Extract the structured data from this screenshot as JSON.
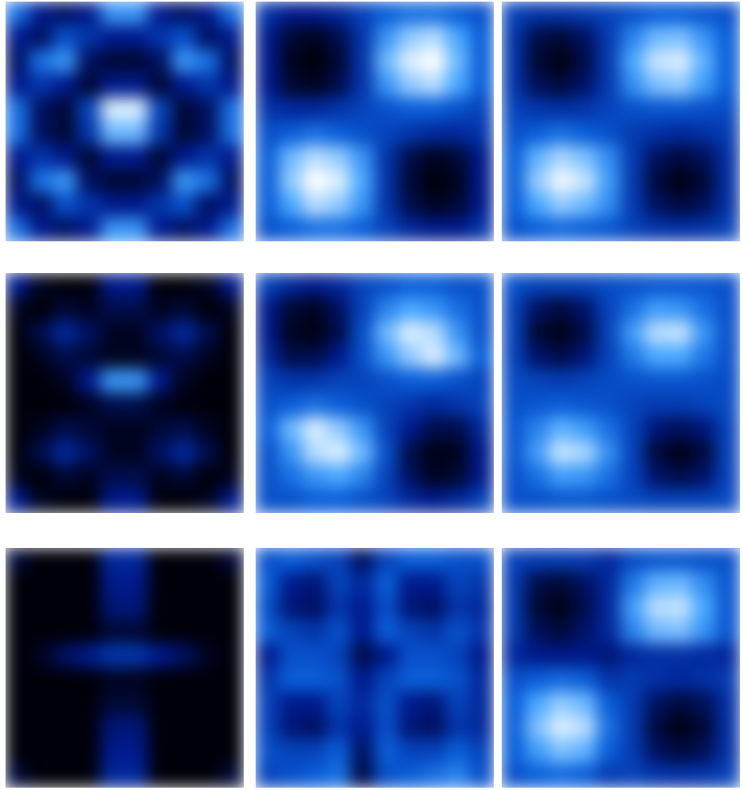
{
  "chart_data": [
    {
      "type": "heatmap",
      "tick_labels": false,
      "cells": [
        [
          0.6,
          0.3,
          0.2,
          0.3,
          0.7,
          0.7,
          0.3,
          0.2,
          0.3,
          0.6
        ],
        [
          0.3,
          0.2,
          0.5,
          0.4,
          0.3,
          0.3,
          0.4,
          0.5,
          0.2,
          0.3
        ],
        [
          0.2,
          0.6,
          0.7,
          0.2,
          0.1,
          0.1,
          0.2,
          0.7,
          0.6,
          0.2
        ],
        [
          0.3,
          0.4,
          0.3,
          0.1,
          0.3,
          0.3,
          0.1,
          0.3,
          0.4,
          0.3
        ],
        [
          0.6,
          0.2,
          0.1,
          0.45,
          0.95,
          0.95,
          0.45,
          0.1,
          0.2,
          0.6
        ],
        [
          0.6,
          0.2,
          0.1,
          0.4,
          0.8,
          0.8,
          0.4,
          0.1,
          0.2,
          0.6
        ],
        [
          0.3,
          0.4,
          0.3,
          0.1,
          0.3,
          0.3,
          0.1,
          0.3,
          0.4,
          0.3
        ],
        [
          0.2,
          0.6,
          0.7,
          0.2,
          0.1,
          0.1,
          0.2,
          0.7,
          0.6,
          0.2
        ],
        [
          0.3,
          0.2,
          0.5,
          0.4,
          0.3,
          0.3,
          0.4,
          0.5,
          0.2,
          0.3
        ],
        [
          0.6,
          0.3,
          0.2,
          0.3,
          0.7,
          0.7,
          0.3,
          0.2,
          0.3,
          0.6
        ]
      ]
    },
    {
      "type": "heatmap",
      "tick_labels": false,
      "cells": [
        [
          0.4,
          0.3,
          0.3,
          0.35,
          0.45,
          0.55,
          0.6,
          0.6,
          0.55,
          0.5
        ],
        [
          0.3,
          0.1,
          0.05,
          0.15,
          0.4,
          0.7,
          0.85,
          0.9,
          0.75,
          0.55
        ],
        [
          0.3,
          0.05,
          0,
          0.1,
          0.4,
          0.8,
          0.95,
          1,
          0.8,
          0.55
        ],
        [
          0.3,
          0.1,
          0.05,
          0.15,
          0.4,
          0.7,
          0.85,
          0.9,
          0.75,
          0.55
        ],
        [
          0.4,
          0.35,
          0.35,
          0.4,
          0.45,
          0.5,
          0.55,
          0.55,
          0.5,
          0.45
        ],
        [
          0.5,
          0.55,
          0.6,
          0.55,
          0.5,
          0.45,
          0.4,
          0.35,
          0.35,
          0.4
        ],
        [
          0.55,
          0.8,
          0.9,
          0.85,
          0.7,
          0.4,
          0.15,
          0.05,
          0.1,
          0.3
        ],
        [
          0.55,
          0.85,
          1,
          0.95,
          0.75,
          0.4,
          0.1,
          0,
          0.05,
          0.3
        ],
        [
          0.55,
          0.75,
          0.9,
          0.85,
          0.7,
          0.4,
          0.15,
          0.05,
          0.1,
          0.3
        ],
        [
          0.5,
          0.55,
          0.6,
          0.6,
          0.55,
          0.45,
          0.35,
          0.3,
          0.3,
          0.4
        ]
      ]
    },
    {
      "type": "heatmap",
      "tick_labels": false,
      "cells": [
        [
          0.45,
          0.4,
          0.4,
          0.42,
          0.45,
          0.5,
          0.55,
          0.55,
          0.52,
          0.5
        ],
        [
          0.4,
          0.15,
          0.1,
          0.2,
          0.42,
          0.65,
          0.8,
          0.82,
          0.7,
          0.55
        ],
        [
          0.4,
          0.1,
          0.02,
          0.15,
          0.42,
          0.75,
          0.92,
          0.95,
          0.78,
          0.55
        ],
        [
          0.4,
          0.18,
          0.12,
          0.22,
          0.42,
          0.68,
          0.82,
          0.85,
          0.72,
          0.55
        ],
        [
          0.45,
          0.4,
          0.38,
          0.4,
          0.45,
          0.5,
          0.52,
          0.52,
          0.5,
          0.48
        ],
        [
          0.5,
          0.55,
          0.6,
          0.55,
          0.5,
          0.42,
          0.38,
          0.35,
          0.38,
          0.42
        ],
        [
          0.55,
          0.78,
          0.88,
          0.82,
          0.68,
          0.42,
          0.2,
          0.12,
          0.18,
          0.38
        ],
        [
          0.55,
          0.85,
          0.98,
          0.92,
          0.72,
          0.42,
          0.12,
          0.02,
          0.1,
          0.38
        ],
        [
          0.55,
          0.75,
          0.85,
          0.8,
          0.68,
          0.42,
          0.2,
          0.12,
          0.18,
          0.38
        ],
        [
          0.5,
          0.55,
          0.58,
          0.55,
          0.52,
          0.45,
          0.4,
          0.38,
          0.4,
          0.45
        ]
      ]
    },
    {
      "type": "heatmap",
      "tick_labels": false,
      "cells": [
        [
          0.3,
          0.05,
          0,
          0,
          0.3,
          0.3,
          0,
          0,
          0.05,
          0.3
        ],
        [
          0.05,
          0,
          0.1,
          0.05,
          0.15,
          0.15,
          0.05,
          0.1,
          0,
          0.05
        ],
        [
          0,
          0.15,
          0.35,
          0.2,
          0.05,
          0.05,
          0.2,
          0.35,
          0.15,
          0
        ],
        [
          0,
          0.05,
          0.15,
          0.1,
          0.05,
          0.05,
          0.1,
          0.15,
          0.05,
          0
        ],
        [
          0,
          0,
          0.05,
          0.3,
          0.7,
          0.7,
          0.3,
          0.05,
          0,
          0
        ],
        [
          0,
          0,
          0,
          0.05,
          0.15,
          0.15,
          0.05,
          0,
          0,
          0
        ],
        [
          0,
          0.05,
          0.15,
          0.1,
          0.05,
          0.05,
          0.1,
          0.15,
          0.05,
          0
        ],
        [
          0,
          0.15,
          0.35,
          0.2,
          0.05,
          0.05,
          0.2,
          0.35,
          0.15,
          0
        ],
        [
          0.05,
          0,
          0.1,
          0.05,
          0.15,
          0.15,
          0.05,
          0.1,
          0,
          0.05
        ],
        [
          0.3,
          0.05,
          0,
          0,
          0.3,
          0.3,
          0,
          0,
          0.05,
          0.3
        ]
      ]
    },
    {
      "type": "heatmap",
      "tick_labels": false,
      "cells": [
        [
          0.45,
          0.35,
          0.3,
          0.35,
          0.45,
          0.5,
          0.55,
          0.55,
          0.5,
          0.5
        ],
        [
          0.3,
          0.1,
          0.05,
          0.2,
          0.45,
          0.65,
          0.75,
          0.7,
          0.6,
          0.5
        ],
        [
          0.3,
          0.05,
          0.02,
          0.15,
          0.5,
          0.8,
          0.95,
          0.9,
          0.7,
          0.5
        ],
        [
          0.35,
          0.15,
          0.15,
          0.3,
          0.5,
          0.7,
          0.85,
          0.95,
          0.8,
          0.55
        ],
        [
          0.45,
          0.4,
          0.4,
          0.45,
          0.45,
          0.5,
          0.55,
          0.55,
          0.5,
          0.45
        ],
        [
          0.5,
          0.55,
          0.6,
          0.55,
          0.5,
          0.45,
          0.4,
          0.35,
          0.4,
          0.45
        ],
        [
          0.55,
          0.8,
          0.95,
          0.85,
          0.7,
          0.45,
          0.3,
          0.15,
          0.15,
          0.35
        ],
        [
          0.5,
          0.7,
          0.9,
          0.95,
          0.8,
          0.5,
          0.15,
          0.02,
          0.05,
          0.3
        ],
        [
          0.5,
          0.6,
          0.7,
          0.75,
          0.65,
          0.45,
          0.2,
          0.05,
          0.1,
          0.3
        ],
        [
          0.5,
          0.5,
          0.55,
          0.55,
          0.5,
          0.45,
          0.35,
          0.3,
          0.35,
          0.45
        ]
      ]
    },
    {
      "type": "heatmap",
      "tick_labels": false,
      "cells": [
        [
          0.5,
          0.45,
          0.45,
          0.45,
          0.48,
          0.5,
          0.52,
          0.52,
          0.52,
          0.5
        ],
        [
          0.45,
          0.2,
          0.12,
          0.22,
          0.45,
          0.6,
          0.72,
          0.7,
          0.6,
          0.5
        ],
        [
          0.45,
          0.1,
          0.03,
          0.15,
          0.45,
          0.72,
          0.9,
          0.92,
          0.7,
          0.5
        ],
        [
          0.45,
          0.22,
          0.15,
          0.25,
          0.45,
          0.62,
          0.75,
          0.75,
          0.62,
          0.5
        ],
        [
          0.48,
          0.45,
          0.42,
          0.45,
          0.48,
          0.5,
          0.52,
          0.52,
          0.5,
          0.48
        ],
        [
          0.5,
          0.52,
          0.55,
          0.52,
          0.5,
          0.45,
          0.42,
          0.42,
          0.45,
          0.48
        ],
        [
          0.52,
          0.65,
          0.78,
          0.72,
          0.6,
          0.45,
          0.25,
          0.18,
          0.25,
          0.45
        ],
        [
          0.52,
          0.72,
          0.92,
          0.88,
          0.68,
          0.45,
          0.12,
          0.03,
          0.12,
          0.45
        ],
        [
          0.5,
          0.6,
          0.72,
          0.7,
          0.6,
          0.45,
          0.22,
          0.15,
          0.22,
          0.45
        ],
        [
          0.5,
          0.5,
          0.52,
          0.52,
          0.5,
          0.48,
          0.45,
          0.45,
          0.45,
          0.48
        ]
      ]
    },
    {
      "type": "heatmap",
      "tick_labels": false,
      "cells": [
        [
          0.1,
          0,
          0,
          0,
          0.35,
          0.35,
          0,
          0,
          0,
          0.1
        ],
        [
          0,
          0,
          0,
          0,
          0.3,
          0.3,
          0,
          0,
          0,
          0
        ],
        [
          0,
          0,
          0,
          0,
          0.25,
          0.25,
          0,
          0,
          0,
          0
        ],
        [
          0,
          0,
          0,
          0,
          0.1,
          0.1,
          0,
          0,
          0,
          0
        ],
        [
          0,
          0.05,
          0.2,
          0.3,
          0.4,
          0.4,
          0.3,
          0.2,
          0.05,
          0
        ],
        [
          0,
          0,
          0,
          0,
          0.05,
          0.05,
          0,
          0,
          0,
          0
        ],
        [
          0,
          0,
          0,
          0,
          0.1,
          0.1,
          0,
          0,
          0,
          0
        ],
        [
          0,
          0,
          0,
          0,
          0.25,
          0.25,
          0,
          0,
          0,
          0
        ],
        [
          0,
          0,
          0,
          0,
          0.3,
          0.3,
          0,
          0,
          0,
          0
        ],
        [
          0.1,
          0,
          0,
          0,
          0.35,
          0.35,
          0,
          0,
          0,
          0.1
        ]
      ]
    },
    {
      "type": "heatmap",
      "tick_labels": false,
      "cells": [
        [
          0.5,
          0.55,
          0.5,
          0.45,
          0.2,
          0.45,
          0.55,
          0.55,
          0.5,
          0.5
        ],
        [
          0.55,
          0.3,
          0.25,
          0.45,
          0.35,
          0.55,
          0.3,
          0.3,
          0.45,
          0.4
        ],
        [
          0.5,
          0.25,
          0.2,
          0.4,
          0.3,
          0.5,
          0.25,
          0.2,
          0.4,
          0.35
        ],
        [
          0.55,
          0.45,
          0.4,
          0.5,
          0.3,
          0.55,
          0.45,
          0.4,
          0.5,
          0.4
        ],
        [
          0.3,
          0.5,
          0.5,
          0.45,
          0.15,
          0.3,
          0.5,
          0.5,
          0.45,
          0.3
        ],
        [
          0.4,
          0.55,
          0.55,
          0.5,
          0.3,
          0.45,
          0.55,
          0.55,
          0.5,
          0.35
        ],
        [
          0.45,
          0.3,
          0.3,
          0.45,
          0.35,
          0.5,
          0.3,
          0.25,
          0.45,
          0.35
        ],
        [
          0.45,
          0.25,
          0.2,
          0.4,
          0.3,
          0.5,
          0.25,
          0.2,
          0.4,
          0.35
        ],
        [
          0.5,
          0.45,
          0.45,
          0.55,
          0.2,
          0.55,
          0.45,
          0.45,
          0.55,
          0.45
        ],
        [
          0.45,
          0.5,
          0.55,
          0.6,
          0.15,
          0.5,
          0.55,
          0.6,
          0.65,
          0.5
        ]
      ]
    },
    {
      "type": "heatmap",
      "tick_labels": false,
      "cells": [
        [
          0.45,
          0.42,
          0.42,
          0.42,
          0.35,
          0.48,
          0.52,
          0.52,
          0.5,
          0.5
        ],
        [
          0.42,
          0.15,
          0.1,
          0.2,
          0.35,
          0.62,
          0.78,
          0.8,
          0.68,
          0.52
        ],
        [
          0.42,
          0.1,
          0.03,
          0.15,
          0.35,
          0.72,
          0.9,
          0.92,
          0.75,
          0.52
        ],
        [
          0.42,
          0.18,
          0.12,
          0.22,
          0.35,
          0.65,
          0.8,
          0.82,
          0.7,
          0.52
        ],
        [
          0.35,
          0.3,
          0.28,
          0.3,
          0.25,
          0.35,
          0.38,
          0.38,
          0.36,
          0.35
        ],
        [
          0.5,
          0.55,
          0.58,
          0.55,
          0.4,
          0.42,
          0.38,
          0.35,
          0.38,
          0.42
        ],
        [
          0.55,
          0.75,
          0.85,
          0.8,
          0.55,
          0.42,
          0.2,
          0.12,
          0.18,
          0.38
        ],
        [
          0.55,
          0.82,
          0.95,
          0.9,
          0.6,
          0.42,
          0.12,
          0.03,
          0.1,
          0.38
        ],
        [
          0.55,
          0.72,
          0.82,
          0.78,
          0.55,
          0.42,
          0.2,
          0.12,
          0.18,
          0.38
        ],
        [
          0.5,
          0.55,
          0.58,
          0.55,
          0.42,
          0.45,
          0.4,
          0.38,
          0.4,
          0.45
        ]
      ]
    }
  ]
}
